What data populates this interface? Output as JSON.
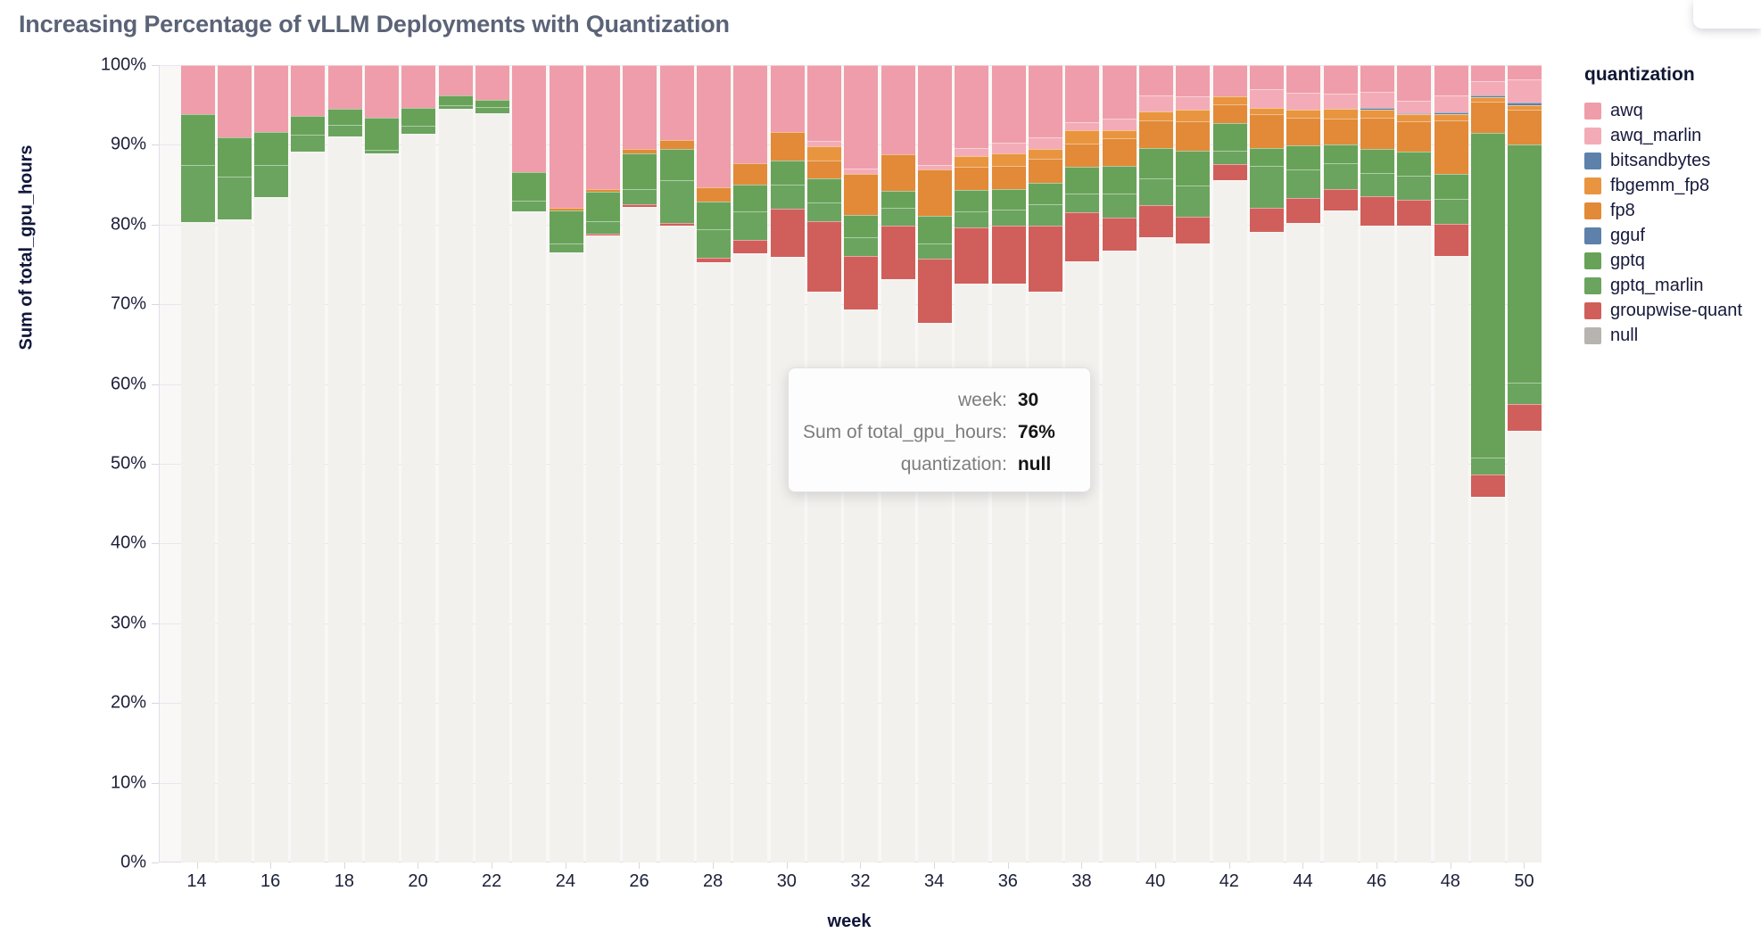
{
  "header": {
    "title": "Increasing Percentage of vLLM Deployments with Quantization"
  },
  "legend": {
    "title": "quantization",
    "items": [
      {
        "label": "awq",
        "color": "#EF9DAA"
      },
      {
        "label": "awq_marlin",
        "color": "#F3ACB7"
      },
      {
        "label": "bitsandbytes",
        "color": "#5D81AB"
      },
      {
        "label": "fbgemm_fp8",
        "color": "#E9953F"
      },
      {
        "label": "fp8",
        "color": "#E28A38"
      },
      {
        "label": "gguf",
        "color": "#5D81AB"
      },
      {
        "label": "gptq",
        "color": "#68A259"
      },
      {
        "label": "gptq_marlin",
        "color": "#6BA45E"
      },
      {
        "label": "groupwise-quant",
        "color": "#D05F5B"
      },
      {
        "label": "null",
        "color": "#B7B3B0"
      }
    ]
  },
  "tooltip": {
    "rows": [
      {
        "label": "week:",
        "value": "30"
      },
      {
        "label": "Sum of total_gpu_hours:",
        "value": "76%"
      },
      {
        "label": "quantization:",
        "value": "null"
      }
    ]
  },
  "chart_data": {
    "type": "bar",
    "stacked": true,
    "normalized": true,
    "title": "Increasing Percentage of vLLM Deployments with Quantization",
    "xlabel": "week",
    "ylabel": "Sum of total_gpu_hours",
    "ylim": [
      0,
      100
    ],
    "grid": true,
    "legend_position": "right",
    "x": [
      14,
      15,
      16,
      17,
      18,
      19,
      20,
      21,
      22,
      23,
      24,
      25,
      26,
      27,
      28,
      29,
      30,
      31,
      32,
      33,
      34,
      35,
      36,
      37,
      38,
      39,
      40,
      41,
      42,
      43,
      44,
      45,
      46,
      47,
      48,
      49,
      50
    ],
    "xticks": [
      14,
      16,
      18,
      20,
      22,
      24,
      26,
      28,
      30,
      32,
      34,
      36,
      38,
      40,
      42,
      44,
      46,
      48,
      50
    ],
    "yticks_percent": [
      0,
      10,
      20,
      30,
      40,
      50,
      60,
      70,
      80,
      90,
      100
    ],
    "stack_order_top_to_bottom": [
      "awq",
      "awq_marlin",
      "bitsandbytes",
      "fbgemm_fp8",
      "fp8",
      "gguf",
      "gptq",
      "gptq_marlin",
      "groupwise-quant",
      "null"
    ],
    "series": [
      {
        "name": "awq",
        "color": "#EF9DAA",
        "values": [
          6.2,
          9.1,
          8.4,
          6.4,
          5.5,
          6.6,
          5.4,
          3.8,
          4.4,
          13.4,
          17.9,
          15.5,
          10.5,
          9.4,
          15.3,
          12.3,
          8.4,
          9.5,
          13.0,
          11.2,
          12.5,
          10.4,
          9.7,
          9.1,
          7.2,
          6.7,
          3.8,
          3.9,
          3.9,
          3.0,
          3.5,
          3.6,
          3.4,
          4.5,
          3.8,
          2.0,
          1.8
        ]
      },
      {
        "name": "awq_marlin",
        "color": "#F3ACB7",
        "values": [
          0,
          0,
          0,
          0,
          0,
          0,
          0,
          0,
          0,
          0,
          0,
          0,
          0,
          0,
          0,
          0,
          0,
          0.7,
          0.6,
          0,
          0.6,
          1.0,
          1.4,
          1.4,
          1.0,
          1.5,
          2.0,
          1.7,
          0,
          2.4,
          2.1,
          1.9,
          2.0,
          1.5,
          2.1,
          1.8,
          2.9
        ]
      },
      {
        "name": "bitsandbytes",
        "color": "#5D81AB",
        "values": [
          0,
          0,
          0,
          0,
          0,
          0,
          0,
          0,
          0,
          0,
          0,
          0,
          0,
          0,
          0,
          0,
          0,
          0,
          0,
          0,
          0,
          0,
          0,
          0,
          0,
          0,
          0,
          0,
          0,
          0,
          0,
          0,
          0.2,
          0.2,
          0.2,
          0.2,
          0.3
        ]
      },
      {
        "name": "fbgemm_fp8",
        "color": "#E9953F",
        "values": [
          0,
          0,
          0,
          0,
          0,
          0,
          0,
          0,
          0,
          0,
          0,
          0,
          0,
          0,
          0,
          0,
          0,
          1.8,
          0,
          0,
          0,
          1.3,
          1.5,
          1.2,
          1.6,
          1.0,
          1.1,
          1.5,
          1.0,
          0.8,
          1.0,
          1.2,
          1.0,
          0.8,
          0.8,
          0.6,
          0.6
        ]
      },
      {
        "name": "fp8",
        "color": "#E28A38",
        "values": [
          0,
          0,
          0,
          0,
          0,
          0,
          0,
          0,
          0,
          0,
          0.3,
          0.4,
          0.6,
          1.1,
          1.8,
          2.7,
          3.6,
          2.2,
          5.2,
          4.6,
          5.8,
          3.0,
          3.0,
          3.1,
          3.0,
          3.4,
          3.5,
          3.6,
          2.4,
          4.2,
          3.5,
          3.3,
          3.9,
          3.8,
          6.8,
          3.9,
          4.4
        ]
      },
      {
        "name": "gguf",
        "color": "#5D81AB",
        "values": [
          0,
          0,
          0,
          0,
          0,
          0,
          0,
          0,
          0,
          0,
          0,
          0,
          0,
          0,
          0,
          0,
          0,
          0,
          0,
          0,
          0,
          0,
          0,
          0,
          0,
          0,
          0,
          0,
          0,
          0,
          0,
          0,
          0,
          0,
          0,
          0,
          0
        ]
      },
      {
        "name": "gptq",
        "color": "#68A259",
        "values": [
          6.3,
          4.9,
          4.1,
          2.3,
          2.0,
          4.0,
          2.2,
          1.2,
          0.9,
          3.6,
          4.2,
          3.7,
          4.4,
          3.9,
          3.5,
          3.3,
          3.0,
          3.0,
          2.8,
          2.1,
          3.5,
          2.7,
          2.5,
          2.6,
          3.3,
          3.5,
          3.8,
          4.4,
          3.4,
          2.2,
          3.0,
          2.3,
          3.0,
          3.1,
          3.1,
          40.7,
          29.8
        ]
      },
      {
        "name": "gptq_marlin",
        "color": "#6BA45E",
        "values": [
          7.2,
          5.3,
          4.1,
          2.2,
          1.5,
          0.5,
          1.0,
          0.5,
          0.7,
          1.3,
          1.1,
          1.5,
          2.0,
          5.4,
          3.6,
          3.6,
          3.0,
          2.4,
          2.3,
          2.2,
          1.9,
          2.0,
          2.0,
          2.7,
          2.4,
          3.0,
          3.4,
          3.9,
          1.7,
          5.3,
          3.6,
          3.2,
          2.9,
          3.0,
          3.1,
          2.1,
          2.7
        ]
      },
      {
        "name": "groupwise-quant",
        "color": "#D05F5B",
        "values": [
          0,
          0,
          0,
          0,
          0,
          0,
          0,
          0,
          0,
          0,
          0,
          0.3,
          0.3,
          0.3,
          0.5,
          1.7,
          6.0,
          8.8,
          6.7,
          6.7,
          8.0,
          7.0,
          7.3,
          8.3,
          6.1,
          4.2,
          4.0,
          3.4,
          2.0,
          3.0,
          3.1,
          2.7,
          3.7,
          3.2,
          4.0,
          2.8,
          3.4
        ]
      },
      {
        "name": "null",
        "color": "#B7B3B0",
        "bar_color": "#f3f1ee",
        "values": [
          80.3,
          80.7,
          83.4,
          89.1,
          91.0,
          88.9,
          91.4,
          94.5,
          94.0,
          81.7,
          76.5,
          78.6,
          82.2,
          79.9,
          75.3,
          76.4,
          76.0,
          71.6,
          69.4,
          73.2,
          67.7,
          72.6,
          72.6,
          71.6,
          75.4,
          76.7,
          78.4,
          77.6,
          85.6,
          79.1,
          80.2,
          81.8,
          79.9,
          79.9,
          76.1,
          45.9,
          54.1
        ]
      }
    ]
  }
}
